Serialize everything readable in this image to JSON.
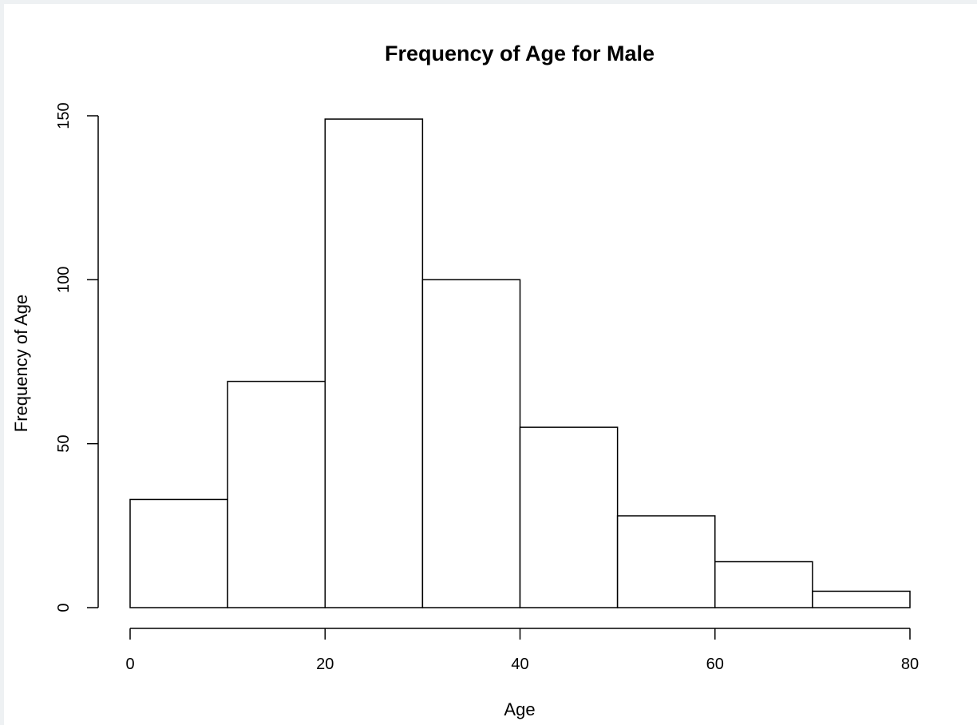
{
  "chart_data": {
    "type": "bar",
    "title": "Frequency of Age for Male",
    "xlabel": "Age",
    "ylabel": "Frequency of Age",
    "bins": [
      {
        "start": 0,
        "end": 10,
        "value": 33
      },
      {
        "start": 10,
        "end": 20,
        "value": 69
      },
      {
        "start": 20,
        "end": 30,
        "value": 149
      },
      {
        "start": 30,
        "end": 40,
        "value": 100
      },
      {
        "start": 40,
        "end": 50,
        "value": 55
      },
      {
        "start": 50,
        "end": 60,
        "value": 28
      },
      {
        "start": 60,
        "end": 70,
        "value": 14
      },
      {
        "start": 70,
        "end": 80,
        "value": 5
      }
    ],
    "xlim": [
      0,
      80
    ],
    "ylim": [
      0,
      150
    ],
    "xticks": [
      "0",
      "20",
      "40",
      "60",
      "80"
    ],
    "yticks": [
      "0",
      "50",
      "100",
      "150"
    ],
    "grid": false
  }
}
